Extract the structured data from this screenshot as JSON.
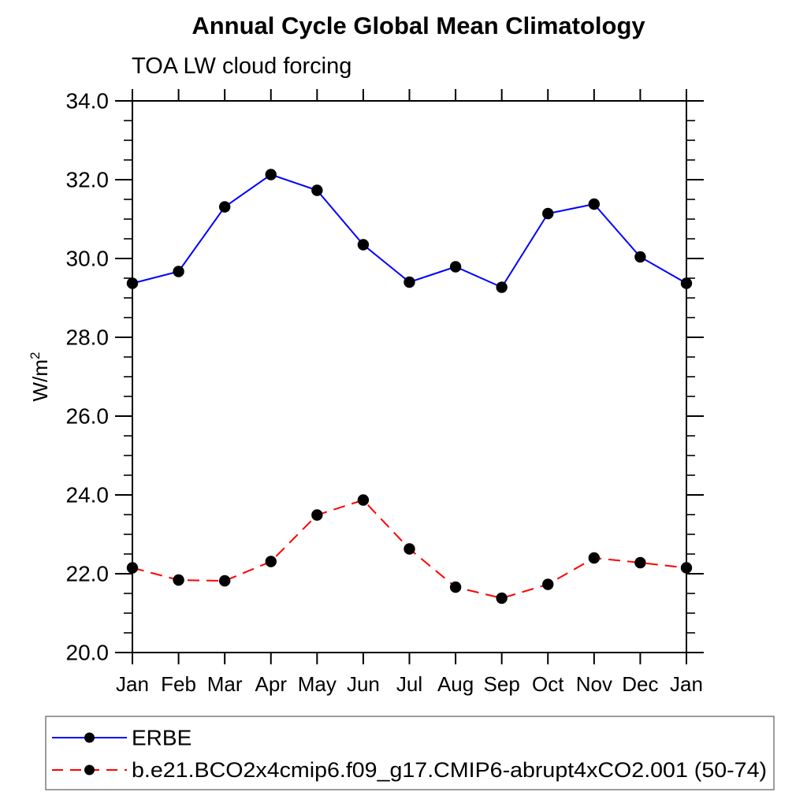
{
  "page": {
    "title": "Annual Cycle Global Mean Climatology",
    "subtitle": "TOA LW cloud forcing",
    "ylabel_base": "W/m",
    "ylabel_exponent": "2"
  },
  "chart_data": {
    "type": "line",
    "title": "Annual Cycle Global Mean Climatology",
    "subtitle": "TOA LW cloud forcing",
    "ylabel": "W/m^2",
    "xlabel": "",
    "categories": [
      "Jan",
      "Feb",
      "Mar",
      "Apr",
      "May",
      "Jun",
      "Jul",
      "Aug",
      "Sep",
      "Oct",
      "Nov",
      "Dec",
      "Jan"
    ],
    "ylim": [
      20.0,
      34.0
    ],
    "ytick_major_values": [
      20,
      22,
      24,
      26,
      28,
      30,
      32,
      34
    ],
    "ytick_major_labels": [
      "20.0",
      "22.0",
      "24.0",
      "26.0",
      "28.0",
      "30.0",
      "32.0",
      "34.0"
    ],
    "ytick_minor_step": 0.5,
    "grid": false,
    "legend_position": "bottom-left-box",
    "frame_color": "#000000",
    "marker_color": "#000000",
    "series": [
      {
        "name": "ERBE",
        "color": "#0000ff",
        "line_style": "solid",
        "marker": "filled-circle",
        "values": [
          29.37,
          29.67,
          31.31,
          32.13,
          31.73,
          30.35,
          29.4,
          29.79,
          29.27,
          31.14,
          31.38,
          30.04,
          29.37
        ]
      },
      {
        "name": "b.e21.BCO2x4cmip6.f09_g17.CMIP6-abrupt4xCO2.001 (50-74)",
        "color": "#ff0000",
        "line_style": "dashed",
        "marker": "filled-circle",
        "values": [
          22.15,
          21.84,
          21.82,
          22.31,
          23.49,
          23.87,
          22.63,
          21.66,
          21.38,
          21.73,
          22.4,
          22.28,
          22.15
        ]
      }
    ]
  }
}
